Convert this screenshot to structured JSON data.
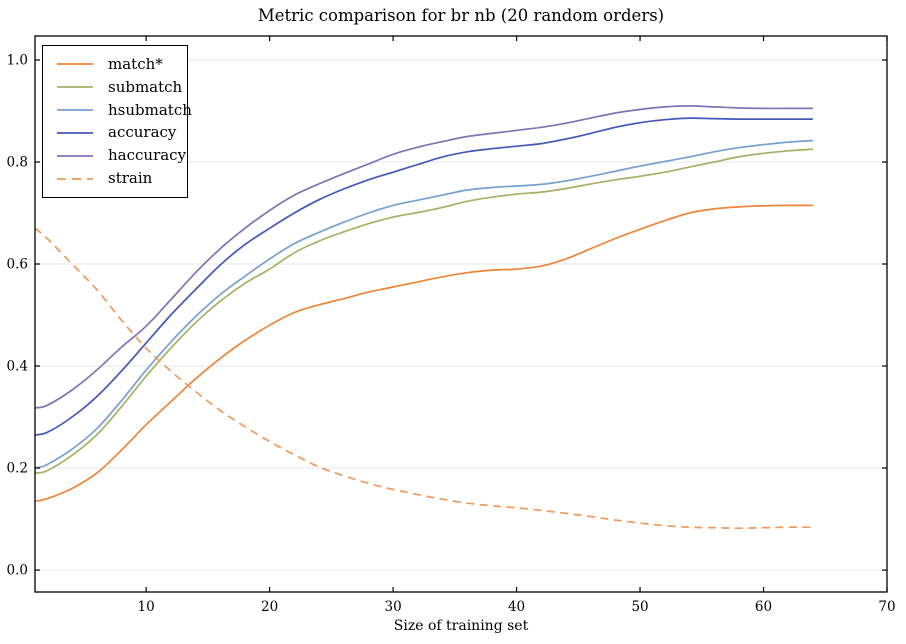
{
  "figure": {
    "background": "#ffffff"
  },
  "chart_data": {
    "type": "line",
    "title": "Metric comparison for br nb (20 random orders)",
    "xlabel": "Size of training set",
    "ylabel": "",
    "xlim": [
      1,
      70
    ],
    "ylim": [
      -0.043,
      1.047
    ],
    "xticks": [
      10,
      20,
      30,
      40,
      50,
      60,
      70
    ],
    "xtick_labels": [
      "10",
      "20",
      "30",
      "40",
      "50",
      "60",
      "70"
    ],
    "yticks": [
      0.0,
      0.2,
      0.4,
      0.6,
      0.8,
      1.0
    ],
    "ytick_labels": [
      "0.0",
      "0.2",
      "0.4",
      "0.6",
      "0.8",
      "1.0"
    ],
    "grid": "horizontal",
    "grid_color": "#e7e7e7",
    "axis_color": "#000000",
    "legend_position": "upper-left",
    "x": [
      1,
      2,
      4,
      6,
      8,
      10,
      12,
      14,
      16,
      18,
      20,
      22,
      24,
      26,
      28,
      30,
      32,
      34,
      36,
      38,
      40,
      42,
      44,
      46,
      48,
      50,
      52,
      54,
      56,
      58,
      60,
      62,
      64
    ],
    "series": [
      {
        "name": "match*",
        "color": "#ec8537",
        "dash": false,
        "values": [
          0.135,
          0.14,
          0.16,
          0.19,
          0.235,
          0.285,
          0.33,
          0.375,
          0.415,
          0.45,
          0.48,
          0.505,
          0.52,
          0.532,
          0.545,
          0.555,
          0.565,
          0.575,
          0.583,
          0.588,
          0.59,
          0.596,
          0.61,
          0.63,
          0.65,
          0.668,
          0.685,
          0.7,
          0.708,
          0.712,
          0.714,
          0.715,
          0.715
        ]
      },
      {
        "name": "submatch",
        "color": "#a6b164",
        "dash": false,
        "values": [
          0.19,
          0.195,
          0.225,
          0.265,
          0.32,
          0.38,
          0.435,
          0.485,
          0.527,
          0.562,
          0.59,
          0.622,
          0.645,
          0.663,
          0.679,
          0.692,
          0.701,
          0.711,
          0.723,
          0.731,
          0.737,
          0.741,
          0.748,
          0.757,
          0.765,
          0.772,
          0.78,
          0.79,
          0.8,
          0.81,
          0.817,
          0.822,
          0.825
        ]
      },
      {
        "name": "hsubmatch",
        "color": "#75a1d0",
        "dash": false,
        "values": [
          0.2,
          0.207,
          0.237,
          0.277,
          0.332,
          0.392,
          0.447,
          0.497,
          0.54,
          0.576,
          0.61,
          0.64,
          0.662,
          0.682,
          0.7,
          0.715,
          0.725,
          0.735,
          0.745,
          0.75,
          0.753,
          0.756,
          0.763,
          0.772,
          0.782,
          0.792,
          0.801,
          0.81,
          0.82,
          0.828,
          0.834,
          0.839,
          0.842
        ]
      },
      {
        "name": "accuracy",
        "color": "#4258b8",
        "dash": false,
        "values": [
          0.265,
          0.27,
          0.3,
          0.34,
          0.39,
          0.445,
          0.5,
          0.55,
          0.598,
          0.638,
          0.67,
          0.7,
          0.726,
          0.747,
          0.765,
          0.78,
          0.795,
          0.81,
          0.82,
          0.826,
          0.831,
          0.836,
          0.845,
          0.856,
          0.868,
          0.877,
          0.883,
          0.886,
          0.885,
          0.884,
          0.884,
          0.884,
          0.884
        ]
      },
      {
        "name": "haccuracy",
        "color": "#7d74b6",
        "dash": false,
        "values": [
          0.318,
          0.323,
          0.353,
          0.392,
          0.437,
          0.478,
          0.53,
          0.583,
          0.63,
          0.67,
          0.705,
          0.735,
          0.757,
          0.777,
          0.796,
          0.815,
          0.829,
          0.84,
          0.85,
          0.856,
          0.862,
          0.868,
          0.876,
          0.886,
          0.896,
          0.903,
          0.908,
          0.91,
          0.908,
          0.906,
          0.905,
          0.905,
          0.905
        ]
      },
      {
        "name": "strain",
        "color": "#f0995a",
        "dash": true,
        "values": [
          0.67,
          0.65,
          0.6,
          0.55,
          0.49,
          0.435,
          0.39,
          0.35,
          0.313,
          0.281,
          0.252,
          0.226,
          0.202,
          0.185,
          0.17,
          0.158,
          0.148,
          0.139,
          0.131,
          0.126,
          0.122,
          0.117,
          0.111,
          0.105,
          0.098,
          0.092,
          0.087,
          0.084,
          0.083,
          0.082,
          0.083,
          0.084,
          0.084
        ]
      }
    ]
  }
}
